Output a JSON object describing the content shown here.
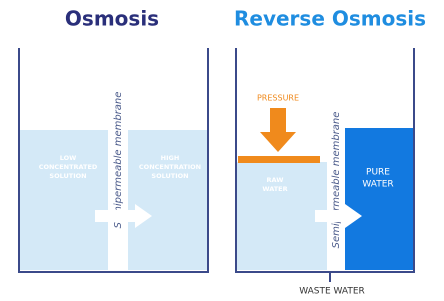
{
  "panels": [
    {
      "title": "Osmosis",
      "membrane": "Semipermeable membrane",
      "left_label": [
        "LOW",
        "CONCENTRATED",
        "SOLUTION"
      ],
      "right_label": [
        "HIGH",
        "CONCENTRATION",
        "SOLUTION"
      ]
    },
    {
      "title": "Reverse Osmosis",
      "membrane": "Semipermeable membrane",
      "pressure": "PRESSURE",
      "left_label": [
        "RAW",
        "WATER"
      ],
      "right_label": [
        "PURE",
        "WATER"
      ],
      "waste": "WASTE WATER"
    }
  ]
}
